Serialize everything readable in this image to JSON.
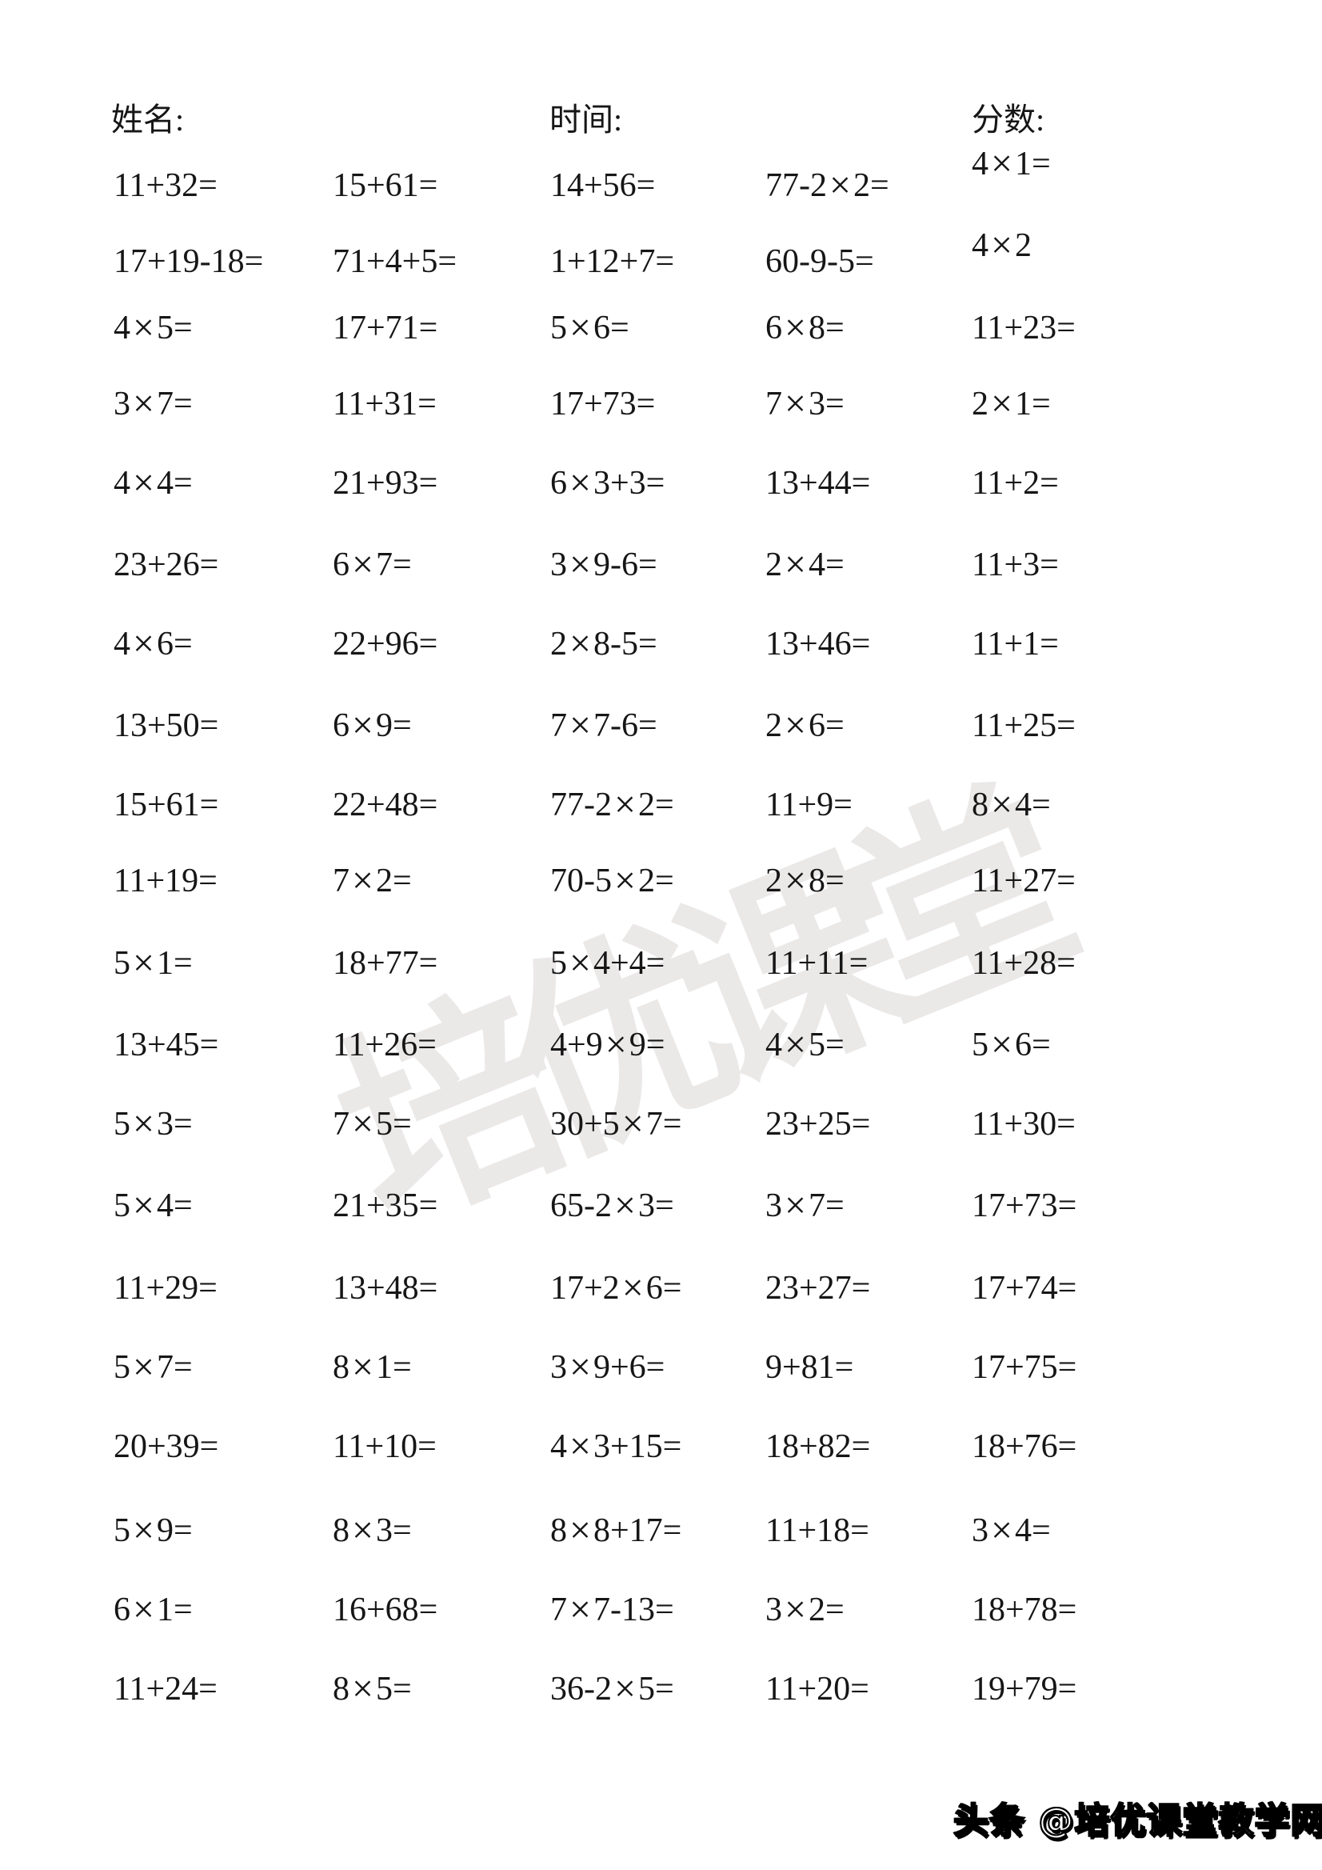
{
  "header": {
    "name_label": "姓名:",
    "time_label": "时间:",
    "score_label": "分数:"
  },
  "worksheet": {
    "columns": 5,
    "rows": [
      [
        "11+32=",
        "15+61=",
        "14+56=",
        "77-2×2=",
        "4×1="
      ],
      [
        "17+19-18=",
        "71+4+5=",
        "1+12+7=",
        "60-9-5=",
        "4×2"
      ],
      [
        "4×5=",
        "17+71=",
        "5×6=",
        "6×8=",
        "11+23="
      ],
      [
        "3×7=",
        "11+31=",
        "17+73=",
        "7×3=",
        "2×1="
      ],
      [
        "4×4=",
        "21+93=",
        "6×3+3=",
        "13+44=",
        "11+2="
      ],
      [
        "23+26=",
        "6×7=",
        "3×9-6=",
        "2×4=",
        "11+3="
      ],
      [
        "4×6=",
        "22+96=",
        "2×8-5=",
        "13+46=",
        "11+1="
      ],
      [
        "13+50=",
        "6×9=",
        "7×7-6=",
        "2×6=",
        "11+25="
      ],
      [
        "15+61=",
        "22+48=",
        "77-2×2=",
        "11+9=",
        "8×4="
      ],
      [
        "11+19=",
        "7×2=",
        "70-5×2=",
        "2×8=",
        "11+27="
      ],
      [
        "5×1=",
        "18+77=",
        "5×4+4=",
        "11+11=",
        "11+28="
      ],
      [
        "13+45=",
        "11+26=",
        "4+9×9=",
        "4×5=",
        "5×6="
      ],
      [
        "5×3=",
        "7×5=",
        "30+5×7=",
        "23+25=",
        "11+30="
      ],
      [
        "5×4=",
        "21+35=",
        "65-2×3=",
        "3×7=",
        "17+73="
      ],
      [
        "11+29=",
        "13+48=",
        "17+2×6=",
        "23+27=",
        "17+74="
      ],
      [
        "5×7=",
        "8×1=",
        "3×9+6=",
        "9+81=",
        "17+75="
      ],
      [
        "20+39=",
        "11+10=",
        "4×3+15=",
        "18+82=",
        "18+76="
      ],
      [
        "5×9=",
        "8×3=",
        "8×8+17=",
        "11+18=",
        "3×4="
      ],
      [
        "6×1=",
        "16+68=",
        "7×7-13=",
        "3×2=",
        "18+78="
      ],
      [
        "11+24=",
        "8×5=",
        "36-2×5=",
        "11+20=",
        "19+79="
      ]
    ]
  },
  "watermark": {
    "text": "培优课堂",
    "color": "#ebe8e8"
  },
  "footer": {
    "text": "头条 @培优课堂教学网"
  }
}
